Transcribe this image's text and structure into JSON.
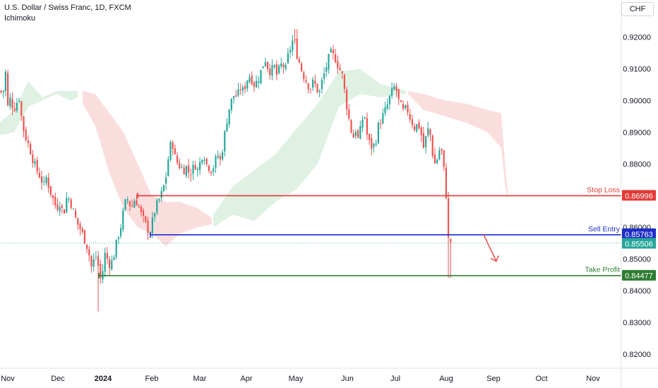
{
  "header": {
    "title": "U.S. Dollar / Swiss Franc, 1D, FXCM",
    "indicator": "Ichimoku",
    "currency": "CHF"
  },
  "colors": {
    "up": "#26a69a",
    "down": "#ef5350",
    "stop": "#e53935",
    "entry": "#1e2dc8",
    "target": "#2e7d32",
    "cloud_bull": "#dcefdf",
    "cloud_bear": "#fadada"
  },
  "chart_data": {
    "type": "candlestick",
    "symbol": "USDCHF",
    "ylim": [
      0.816,
      0.929
    ],
    "y_ticks": [
      "0.92000",
      "0.91000",
      "0.90000",
      "0.89000",
      "0.88000",
      "0.87000",
      "0.86000",
      "0.85000",
      "0.84000",
      "0.83000",
      "0.82000"
    ],
    "x_ticks": [
      "Nov",
      "Dec",
      "2024",
      "Feb",
      "Mar",
      "Apr",
      "May",
      "Jun",
      "Jul",
      "Aug",
      "Sep",
      "Oct",
      "Nov"
    ],
    "bold_x_tick": "2024",
    "close_path": [
      [
        0,
        0.903
      ],
      [
        4,
        0.902
      ],
      [
        8,
        0.909
      ],
      [
        11,
        0.898
      ],
      [
        15,
        0.901
      ],
      [
        19,
        0.897
      ],
      [
        23,
        0.899
      ],
      [
        27,
        0.901
      ],
      [
        32,
        0.892
      ],
      [
        37,
        0.888
      ],
      [
        42,
        0.885
      ],
      [
        47,
        0.881
      ],
      [
        52,
        0.878
      ],
      [
        57,
        0.876
      ],
      [
        62,
        0.873
      ],
      [
        66,
        0.876
      ],
      [
        70,
        0.872
      ],
      [
        75,
        0.869
      ],
      [
        80,
        0.866
      ],
      [
        85,
        0.868
      ],
      [
        90,
        0.864
      ],
      [
        95,
        0.87
      ],
      [
        100,
        0.868
      ],
      [
        105,
        0.864
      ],
      [
        110,
        0.861
      ],
      [
        115,
        0.859
      ],
      [
        120,
        0.856
      ],
      [
        125,
        0.853
      ],
      [
        128,
        0.849
      ],
      [
        131,
        0.846
      ],
      [
        134,
        0.852
      ],
      [
        137,
        0.85
      ],
      [
        140,
        0.847
      ],
      [
        143,
        0.843
      ],
      [
        146,
        0.847
      ],
      [
        149,
        0.852
      ],
      [
        152,
        0.85
      ],
      [
        156,
        0.848
      ],
      [
        160,
        0.85
      ],
      [
        163,
        0.853
      ],
      [
        167,
        0.857
      ],
      [
        172,
        0.861
      ],
      [
        176,
        0.867
      ],
      [
        181,
        0.869
      ],
      [
        186,
        0.866
      ],
      [
        191,
        0.869
      ],
      [
        196,
        0.867
      ],
      [
        200,
        0.864
      ],
      [
        204,
        0.862
      ],
      [
        208,
        0.86
      ],
      [
        212,
        0.858
      ],
      [
        216,
        0.862
      ],
      [
        220,
        0.866
      ],
      [
        224,
        0.868
      ],
      [
        228,
        0.87
      ],
      [
        232,
        0.873
      ],
      [
        236,
        0.877
      ],
      [
        240,
        0.885
      ],
      [
        244,
        0.887
      ],
      [
        248,
        0.882
      ],
      [
        252,
        0.88
      ],
      [
        256,
        0.879
      ],
      [
        260,
        0.878
      ],
      [
        264,
        0.879
      ],
      [
        268,
        0.877
      ],
      [
        272,
        0.878
      ],
      [
        276,
        0.88
      ],
      [
        280,
        0.878
      ],
      [
        284,
        0.881
      ],
      [
        288,
        0.884
      ],
      [
        292,
        0.88
      ],
      [
        296,
        0.879
      ],
      [
        300,
        0.878
      ],
      [
        304,
        0.88
      ],
      [
        308,
        0.883
      ],
      [
        312,
        0.881
      ],
      [
        316,
        0.886
      ],
      [
        320,
        0.892
      ],
      [
        324,
        0.897
      ],
      [
        328,
        0.9
      ],
      [
        332,
        0.902
      ],
      [
        336,
        0.901
      ],
      [
        340,
        0.904
      ],
      [
        344,
        0.903
      ],
      [
        348,
        0.905
      ],
      [
        352,
        0.908
      ],
      [
        356,
        0.907
      ],
      [
        360,
        0.905
      ],
      [
        364,
        0.906
      ],
      [
        368,
        0.908
      ],
      [
        372,
        0.911
      ],
      [
        376,
        0.913
      ],
      [
        380,
        0.91
      ],
      [
        384,
        0.909
      ],
      [
        388,
        0.911
      ],
      [
        392,
        0.908
      ],
      [
        396,
        0.91
      ],
      [
        400,
        0.912
      ],
      [
        404,
        0.909
      ],
      [
        408,
        0.914
      ],
      [
        412,
        0.917
      ],
      [
        416,
        0.92
      ],
      [
        420,
        0.915
      ],
      [
        424,
        0.912
      ],
      [
        428,
        0.909
      ],
      [
        432,
        0.907
      ],
      [
        436,
        0.905
      ],
      [
        440,
        0.904
      ],
      [
        444,
        0.906
      ],
      [
        448,
        0.904
      ],
      [
        452,
        0.902
      ],
      [
        456,
        0.906
      ],
      [
        460,
        0.909
      ],
      [
        464,
        0.912
      ],
      [
        468,
        0.915
      ],
      [
        472,
        0.914
      ],
      [
        476,
        0.913
      ],
      [
        480,
        0.91
      ],
      [
        484,
        0.909
      ],
      [
        488,
        0.903
      ],
      [
        492,
        0.897
      ],
      [
        496,
        0.892
      ],
      [
        500,
        0.888
      ],
      [
        504,
        0.891
      ],
      [
        508,
        0.887
      ],
      [
        512,
        0.893
      ],
      [
        516,
        0.896
      ],
      [
        520,
        0.889
      ],
      [
        524,
        0.886
      ],
      [
        528,
        0.885
      ],
      [
        532,
        0.887
      ],
      [
        536,
        0.892
      ],
      [
        540,
        0.894
      ],
      [
        544,
        0.896
      ],
      [
        548,
        0.898
      ],
      [
        552,
        0.901
      ],
      [
        556,
        0.903
      ],
      [
        560,
        0.905
      ],
      [
        564,
        0.9
      ],
      [
        568,
        0.898
      ],
      [
        572,
        0.896
      ],
      [
        576,
        0.898
      ],
      [
        580,
        0.895
      ],
      [
        584,
        0.893
      ],
      [
        588,
        0.891
      ],
      [
        592,
        0.893
      ],
      [
        596,
        0.89
      ],
      [
        600,
        0.885
      ],
      [
        604,
        0.889
      ],
      [
        608,
        0.892
      ],
      [
        612,
        0.884
      ],
      [
        616,
        0.88
      ],
      [
        620,
        0.882
      ],
      [
        624,
        0.886
      ],
      [
        628,
        0.88
      ],
      [
        631,
        0.872
      ],
      [
        633,
        0.868
      ],
      [
        635,
        0.858
      ],
      [
        637,
        0.855
      ],
      [
        639,
        0.857
      ],
      [
        641,
        0.855
      ]
    ],
    "cloud_bands": [
      {
        "color": "bull",
        "top": [
          [
            0,
            0.893
          ],
          [
            20,
            0.897
          ],
          [
            40,
            0.906
          ],
          [
            60,
            0.901
          ],
          [
            80,
            0.903
          ],
          [
            100,
            0.903
          ],
          [
            110,
            0.903
          ]
        ],
        "bottom": [
          [
            0,
            0.889
          ],
          [
            20,
            0.89
          ],
          [
            40,
            0.898
          ],
          [
            60,
            0.9
          ],
          [
            80,
            0.902
          ],
          [
            100,
            0.9
          ],
          [
            110,
            0.901
          ]
        ]
      },
      {
        "color": "bear",
        "top": [
          [
            117,
            0.903
          ],
          [
            135,
            0.902
          ],
          [
            155,
            0.896
          ],
          [
            175,
            0.89
          ],
          [
            195,
            0.88
          ],
          [
            215,
            0.87
          ],
          [
            235,
            0.868
          ],
          [
            255,
            0.868
          ],
          [
            280,
            0.866
          ],
          [
            300,
            0.863
          ]
        ],
        "bottom": [
          [
            117,
            0.899
          ],
          [
            135,
            0.892
          ],
          [
            155,
            0.877
          ],
          [
            175,
            0.866
          ],
          [
            195,
            0.86
          ],
          [
            215,
            0.858
          ],
          [
            235,
            0.854
          ],
          [
            255,
            0.858
          ],
          [
            280,
            0.86
          ],
          [
            300,
            0.861
          ]
        ]
      },
      {
        "color": "bull",
        "top": [
          [
            302,
            0.864
          ],
          [
            330,
            0.873
          ],
          [
            360,
            0.878
          ],
          [
            390,
            0.883
          ],
          [
            420,
            0.891
          ],
          [
            450,
            0.899
          ],
          [
            480,
            0.909
          ],
          [
            510,
            0.91
          ],
          [
            540,
            0.905
          ],
          [
            560,
            0.904
          ],
          [
            575,
            0.903
          ]
        ],
        "bottom": [
          [
            302,
            0.86
          ],
          [
            330,
            0.864
          ],
          [
            360,
            0.862
          ],
          [
            390,
            0.868
          ],
          [
            420,
            0.872
          ],
          [
            450,
            0.88
          ],
          [
            480,
            0.898
          ],
          [
            510,
            0.902
          ],
          [
            540,
            0.901
          ],
          [
            560,
            0.902
          ],
          [
            575,
            0.902
          ]
        ]
      },
      {
        "color": "bear",
        "top": [
          [
            578,
            0.903
          ],
          [
            600,
            0.902
          ],
          [
            630,
            0.9
          ],
          [
            660,
            0.899
          ],
          [
            690,
            0.897
          ],
          [
            710,
            0.896
          ],
          [
            716,
            0.878
          ],
          [
            720,
            0.869
          ]
        ],
        "bottom": [
          [
            578,
            0.902
          ],
          [
            600,
            0.897
          ],
          [
            630,
            0.895
          ],
          [
            660,
            0.893
          ],
          [
            690,
            0.89
          ],
          [
            710,
            0.885
          ],
          [
            716,
            0.872
          ],
          [
            720,
            0.869
          ]
        ]
      }
    ],
    "levels": [
      {
        "name": "Stop Loss",
        "value": "0.86996",
        "start": 195
      },
      {
        "name": "Sell Entry",
        "value": "0.85763",
        "start": 213
      },
      {
        "name": "Take Profit",
        "value": "0.84477",
        "start": 140
      }
    ],
    "last_price": "0.85506",
    "arrow": {
      "from": [
        685,
        0.8577
      ],
      "to": [
        703,
        0.8493
      ]
    }
  }
}
